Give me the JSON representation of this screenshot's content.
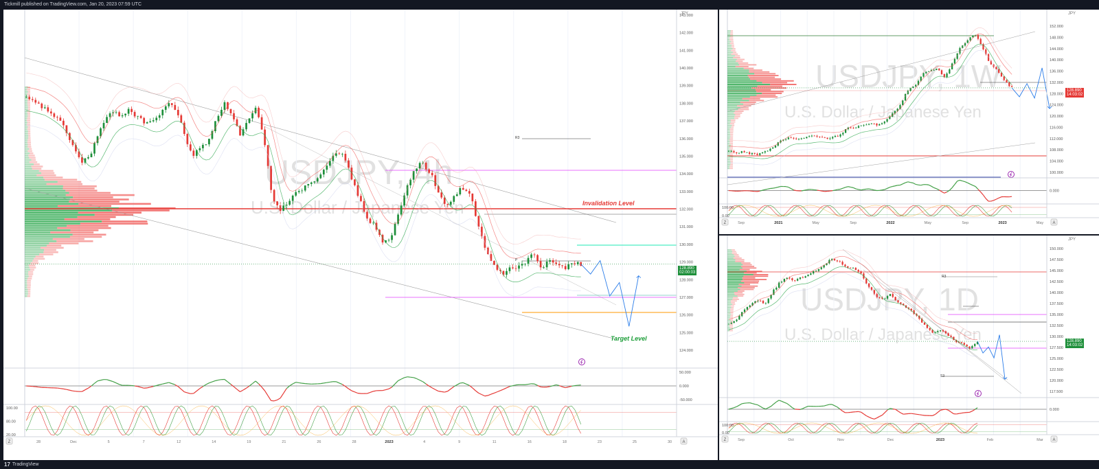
{
  "header": {
    "text": "Tickmill published on TradingView.com, Jan 20, 2023 07:59 UTC"
  },
  "footer": {
    "logo_text": "TradingView"
  },
  "colors": {
    "up": "#1e8f3a",
    "down": "#e53935",
    "invalidation": "#e53935",
    "target": "#1e9e3a",
    "projection": "#2b7de9"
  },
  "panels": {
    "h4": {
      "symbol": "USDJPY, 4h",
      "subtitle": "U.S. Dollar / Japanese Yen",
      "currency": "JPY",
      "price_tag": "128.890",
      "price_sub": "02:00:03",
      "invalidation_label": "Invalidation Level",
      "target_label": "Target Level",
      "r3": "R3",
      "p": "P",
      "y_ticks": [
        "143.000",
        "142.000",
        "141.000",
        "140.000",
        "139.000",
        "138.000",
        "137.000",
        "136.000",
        "135.000",
        "134.000",
        "133.000",
        "132.000",
        "131.000",
        "130.000",
        "129.000",
        "128.000",
        "127.000",
        "126.000",
        "125.000",
        "124.000"
      ],
      "x_ticks": [
        "28",
        "Dec",
        "5",
        "7",
        "12",
        "14",
        "19",
        "21",
        "26",
        "28",
        "2023",
        "4",
        "9",
        "11",
        "16",
        "18",
        "23",
        "25",
        "30"
      ],
      "osc1_ticks": [
        "50.000",
        "0.000",
        "-50.000"
      ],
      "osc2_ticks": [
        "100.00",
        "80.00",
        "20.00"
      ]
    },
    "w1": {
      "symbol": "USDJPY, 1W",
      "subtitle": "U.S. Dollar / Japanese Yen",
      "currency": "JPY",
      "price_tag": "128.890",
      "price_sub": "14:03:02",
      "y_ticks": [
        "152.000",
        "148.000",
        "144.000",
        "140.000",
        "136.000",
        "132.000",
        "128.000",
        "124.000",
        "120.000",
        "116.000",
        "112.000",
        "108.000",
        "104.000",
        "100.000"
      ],
      "x_ticks": [
        "Sep",
        "2021",
        "May",
        "Sep",
        "2022",
        "May",
        "Sep",
        "2023",
        "May"
      ],
      "osc1_ticks": [
        "0.000"
      ],
      "osc2_ticks": [
        "100.00",
        "0.00"
      ]
    },
    "d1": {
      "symbol": "USDJPY, 1D",
      "subtitle": "U.S. Dollar / Japanese Yen",
      "currency": "JPY",
      "price_tag": "128.890",
      "price_sub": "14:03:02",
      "r3": "R3",
      "s3": "S3",
      "y_ticks": [
        "150.000",
        "147.500",
        "145.000",
        "142.500",
        "140.000",
        "137.500",
        "135.000",
        "132.500",
        "130.000",
        "127.500",
        "125.000",
        "122.500",
        "120.000",
        "117.500"
      ],
      "x_ticks": [
        "Sep",
        "Oct",
        "Nov",
        "Dec",
        "2023",
        "Feb",
        "Mar"
      ],
      "osc1_ticks": [
        "0.000"
      ],
      "osc2_ticks": [
        "100.00",
        "0.00"
      ]
    }
  },
  "chart_data": [
    {
      "type": "candlestick",
      "title": "USDJPY, 4h",
      "ylim": [
        123.5,
        143.5
      ],
      "close_path": [
        138.7,
        138.5,
        138.2,
        137.9,
        137.5,
        136.8,
        135.8,
        134.9,
        135.3,
        136.5,
        137.5,
        137.9,
        137.7,
        138.1,
        137.6,
        137.3,
        137.4,
        137.8,
        138.5,
        138.0,
        136.5,
        135.3,
        135.8,
        136.2,
        137.6,
        138.4,
        137.8,
        136.5,
        137.4,
        138.1,
        136.3,
        133.0,
        132.0,
        132.6,
        133.2,
        133.4,
        133.8,
        134.1,
        134.9,
        135.6,
        135.3,
        134.1,
        132.8,
        131.6,
        131.2,
        130.1,
        130.4,
        131.9,
        133.4,
        134.6,
        134.9,
        134.3,
        133.2,
        132.2,
        133.0,
        133.4,
        133.1,
        131.2,
        129.7,
        128.8,
        128.3,
        128.6,
        128.7,
        129.0,
        129.5,
        128.6,
        129.2,
        129.0,
        128.6,
        129.0,
        128.9
      ],
      "markers": {
        "invalidation_level": 133.3,
        "target_level": 124.5,
        "current_price": 128.89
      },
      "projection": [
        128.89,
        128.3,
        129.1,
        127.0,
        127.8,
        125.2,
        128.2
      ]
    },
    {
      "type": "candlestick",
      "title": "USDJPY, 1W",
      "ylim": [
        98,
        154
      ],
      "close_path": [
        104.8,
        104.2,
        104.5,
        103.8,
        103.5,
        104.8,
        106.0,
        109.0,
        110.0,
        109.2,
        109.8,
        110.5,
        110.2,
        109.6,
        110.0,
        111.0,
        114.0,
        113.5,
        114.8,
        115.2,
        114.8,
        116.2,
        119.0,
        122.0,
        128.0,
        129.5,
        134.0,
        135.5,
        136.0,
        133.0,
        138.0,
        144.0,
        147.0,
        149.5,
        145.0,
        138.0,
        135.5,
        131.5,
        128.9
      ],
      "projection": [
        128.9,
        125.5,
        130.5,
        125.0,
        136.5,
        121.0
      ]
    },
    {
      "type": "candlestick",
      "title": "USDJPY, 1D",
      "ylim": [
        116,
        152.5
      ],
      "close_path": [
        133.0,
        134.2,
        136.4,
        138.0,
        139.0,
        138.2,
        141.2,
        143.5,
        144.7,
        143.8,
        144.7,
        145.6,
        146.4,
        147.5,
        149.4,
        148.6,
        147.4,
        146.9,
        146.0,
        142.8,
        140.2,
        139.2,
        140.5,
        138.8,
        137.6,
        136.3,
        134.5,
        132.6,
        130.7,
        131.9,
        130.5,
        129.0,
        128.3,
        127.2,
        128.9
      ],
      "projection": [
        128.9,
        126.0,
        127.5,
        124.8,
        130.5,
        119.5
      ]
    }
  ]
}
